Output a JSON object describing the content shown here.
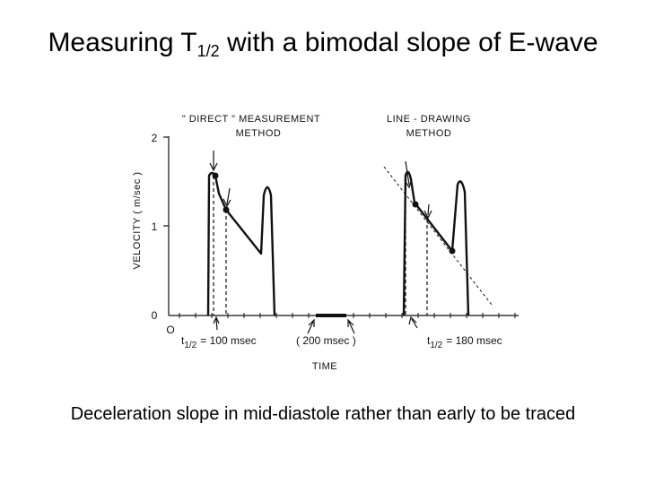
{
  "slide": {
    "title_main": "Measuring T",
    "title_sub": "1/2",
    "title_rest": "with a bimodal slope of E-wave",
    "caption": "Deceleration slope in mid-diastole rather than early to be traced"
  },
  "figure": {
    "left_method_line1": "\" DIRECT \" MEASUREMENT",
    "left_method_line2": "METHOD",
    "right_method_line1": "LINE - DRAWING",
    "right_method_line2": "METHOD",
    "y_axis_label": "VELOCITY ( m/sec )",
    "y_tick_2": "2",
    "y_tick_1": "1",
    "y_tick_0": "0",
    "origin_marker": "O",
    "x_axis_label": "TIME",
    "left_t_label": "t",
    "left_t_sub": "1/2",
    "left_t_value": "= 100 msec",
    "right_t_label": "t",
    "right_t_sub": "1/2",
    "right_t_value": "= 180 msec",
    "scale_label": "( 200 msec )"
  }
}
